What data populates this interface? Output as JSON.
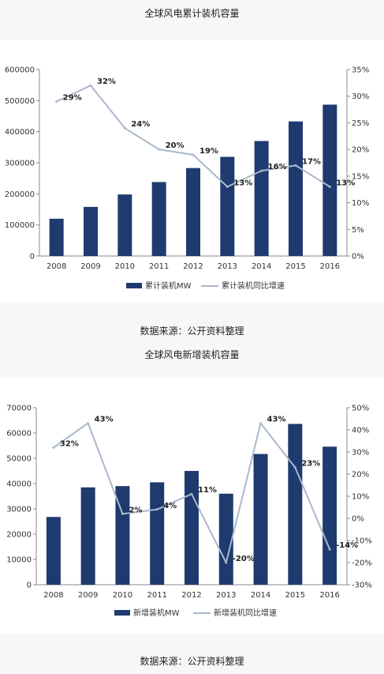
{
  "captions": {
    "title1": "全球风电累计装机容量",
    "source1": "数据来源：公开资料整理",
    "title2": "全球风电新增装机容量",
    "source2": "数据来源：公开资料整理"
  },
  "colors": {
    "bar": "#1f3a6e",
    "line": "#a9b8cc",
    "axis": "#888888"
  },
  "chart_data": [
    {
      "type": "bar",
      "categories": [
        "2008",
        "2009",
        "2010",
        "2011",
        "2012",
        "2013",
        "2014",
        "2015",
        "2016"
      ],
      "series": [
        {
          "name": "累计装机MW",
          "type": "bar",
          "axis": "left",
          "values": [
            120000,
            158000,
            198000,
            238000,
            283000,
            319000,
            370000,
            433000,
            487000
          ]
        },
        {
          "name": "累计装机同比增速",
          "type": "line",
          "axis": "right",
          "values": [
            29,
            32,
            24,
            20,
            19,
            13,
            16,
            17,
            13
          ],
          "labels": [
            "29%",
            "32%",
            "24%",
            "20%",
            "19%",
            "13%",
            "16%",
            "17%",
            "13%"
          ]
        }
      ],
      "ylim": [
        0,
        600000
      ],
      "yticks": [
        "0",
        "100000",
        "200000",
        "300000",
        "400000",
        "500000",
        "600000"
      ],
      "y2lim": [
        0,
        35
      ],
      "y2ticks": [
        "0%",
        "5%",
        "10%",
        "15%",
        "20%",
        "25%",
        "30%",
        "35%"
      ],
      "grid": false,
      "legend": "bottom"
    },
    {
      "type": "bar",
      "categories": [
        "2008",
        "2009",
        "2010",
        "2011",
        "2012",
        "2013",
        "2014",
        "2015",
        "2016"
      ],
      "series": [
        {
          "name": "新增装机MW",
          "type": "bar",
          "axis": "left",
          "values": [
            26800,
            38500,
            39000,
            40500,
            45000,
            36000,
            51700,
            63600,
            54600
          ]
        },
        {
          "name": "新增装机同比增速",
          "type": "line",
          "axis": "right",
          "values": [
            32,
            43,
            2,
            4,
            11,
            -20,
            43,
            23,
            -14
          ],
          "labels": [
            "32%",
            "43%",
            "2%",
            "4%",
            "11%",
            "-20%",
            "43%",
            "23%",
            "-14%"
          ]
        }
      ],
      "ylim": [
        0,
        70000
      ],
      "yticks": [
        "0",
        "10000",
        "20000",
        "30000",
        "40000",
        "50000",
        "60000",
        "70000"
      ],
      "y2lim": [
        -30,
        50
      ],
      "y2ticks": [
        "-30%",
        "-20%",
        "-10%",
        "0%",
        "10%",
        "20%",
        "30%",
        "40%",
        "50%"
      ],
      "grid": false,
      "legend": "bottom"
    }
  ]
}
